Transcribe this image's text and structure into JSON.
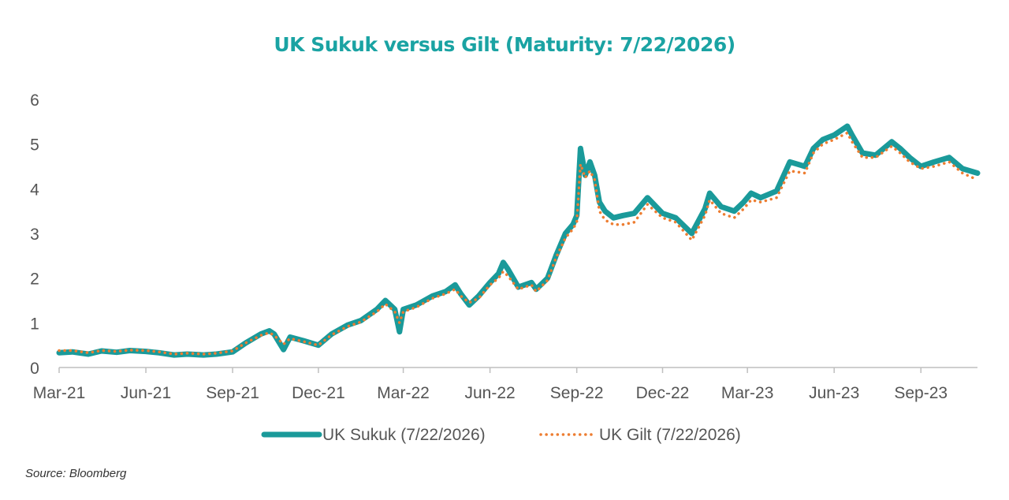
{
  "source_note": "Source: Bloomberg",
  "chart_data": {
    "type": "line",
    "title": "UK Sukuk versus Gilt (Maturity: 7/22/2026)",
    "xlabel": "",
    "ylabel": "",
    "ylim": [
      0,
      6
    ],
    "yticks": [
      "0",
      "1",
      "2",
      "3",
      "4",
      "5",
      "6"
    ],
    "xticks": [
      "Mar-21",
      "Jun-21",
      "Sep-21",
      "Dec-21",
      "Mar-22",
      "Jun-22",
      "Sep-22",
      "Dec-22",
      "Mar-23",
      "Jun-23",
      "Sep-23"
    ],
    "grid": false,
    "legend_position": "bottom",
    "x": [
      "2021-03-01",
      "2021-03-15",
      "2021-04-01",
      "2021-04-15",
      "2021-05-01",
      "2021-05-15",
      "2021-06-01",
      "2021-06-15",
      "2021-07-01",
      "2021-07-15",
      "2021-08-01",
      "2021-08-15",
      "2021-09-01",
      "2021-09-15",
      "2021-10-01",
      "2021-10-10",
      "2021-10-15",
      "2021-10-25",
      "2021-11-01",
      "2021-11-15",
      "2021-12-01",
      "2021-12-15",
      "2022-01-01",
      "2022-01-15",
      "2022-02-01",
      "2022-02-10",
      "2022-02-20",
      "2022-02-25",
      "2022-03-01",
      "2022-03-15",
      "2022-04-01",
      "2022-04-15",
      "2022-04-25",
      "2022-05-01",
      "2022-05-10",
      "2022-05-20",
      "2022-06-01",
      "2022-06-10",
      "2022-06-15",
      "2022-06-20",
      "2022-07-01",
      "2022-07-15",
      "2022-07-20",
      "2022-08-01",
      "2022-08-10",
      "2022-08-20",
      "2022-08-28",
      "2022-09-01",
      "2022-09-05",
      "2022-09-10",
      "2022-09-15",
      "2022-09-20",
      "2022-09-25",
      "2022-10-01",
      "2022-10-10",
      "2022-10-20",
      "2022-11-01",
      "2022-11-15",
      "2022-12-01",
      "2022-12-15",
      "2023-01-01",
      "2023-01-15",
      "2023-01-20",
      "2023-02-01",
      "2023-02-15",
      "2023-02-25",
      "2023-03-05",
      "2023-03-15",
      "2023-04-01",
      "2023-04-15",
      "2023-05-01",
      "2023-05-10",
      "2023-05-20",
      "2023-06-01",
      "2023-06-15",
      "2023-06-20",
      "2023-07-01",
      "2023-07-15",
      "2023-08-01",
      "2023-08-10",
      "2023-08-20",
      "2023-09-01",
      "2023-09-15",
      "2023-10-01",
      "2023-10-15",
      "2023-10-31"
    ],
    "series": [
      {
        "name": "UK Sukuk (7/22/2026)",
        "color": "#1a9a9a",
        "style": "solid-thick",
        "values": [
          0.33,
          0.35,
          0.3,
          0.37,
          0.34,
          0.38,
          0.36,
          0.33,
          0.28,
          0.3,
          0.28,
          0.3,
          0.35,
          0.55,
          0.75,
          0.82,
          0.75,
          0.4,
          0.68,
          0.6,
          0.5,
          0.75,
          0.95,
          1.05,
          1.3,
          1.5,
          1.3,
          0.8,
          1.3,
          1.4,
          1.6,
          1.7,
          1.85,
          1.65,
          1.4,
          1.6,
          1.9,
          2.1,
          2.35,
          2.2,
          1.8,
          1.9,
          1.75,
          2.0,
          2.5,
          3.0,
          3.2,
          3.4,
          4.9,
          4.3,
          4.6,
          4.3,
          3.7,
          3.5,
          3.35,
          3.4,
          3.45,
          3.8,
          3.45,
          3.35,
          3.0,
          3.55,
          3.9,
          3.6,
          3.5,
          3.7,
          3.9,
          3.8,
          3.95,
          4.6,
          4.5,
          4.9,
          5.1,
          5.2,
          5.4,
          5.2,
          4.8,
          4.75,
          5.05,
          4.9,
          4.7,
          4.5,
          4.6,
          4.7,
          4.45,
          4.35
        ]
      },
      {
        "name": "UK Gilt (7/22/2026)",
        "color": "#ed7d31",
        "style": "dotted",
        "values": [
          0.38,
          0.38,
          0.33,
          0.38,
          0.36,
          0.39,
          0.38,
          0.35,
          0.3,
          0.32,
          0.3,
          0.32,
          0.37,
          0.55,
          0.72,
          0.78,
          0.72,
          0.52,
          0.65,
          0.58,
          0.5,
          0.73,
          0.92,
          1.02,
          1.25,
          1.42,
          1.25,
          1.0,
          1.25,
          1.35,
          1.55,
          1.65,
          1.75,
          1.6,
          1.45,
          1.55,
          1.85,
          2.0,
          2.15,
          2.05,
          1.75,
          1.85,
          1.7,
          1.95,
          2.45,
          2.9,
          3.1,
          3.25,
          4.55,
          4.25,
          4.4,
          4.2,
          3.5,
          3.3,
          3.2,
          3.2,
          3.25,
          3.65,
          3.35,
          3.25,
          2.85,
          3.4,
          3.75,
          3.45,
          3.35,
          3.55,
          3.75,
          3.7,
          3.8,
          4.4,
          4.35,
          4.8,
          5.0,
          5.1,
          5.25,
          5.05,
          4.7,
          4.7,
          4.95,
          4.8,
          4.6,
          4.45,
          4.5,
          4.6,
          4.35,
          4.2
        ]
      }
    ]
  }
}
